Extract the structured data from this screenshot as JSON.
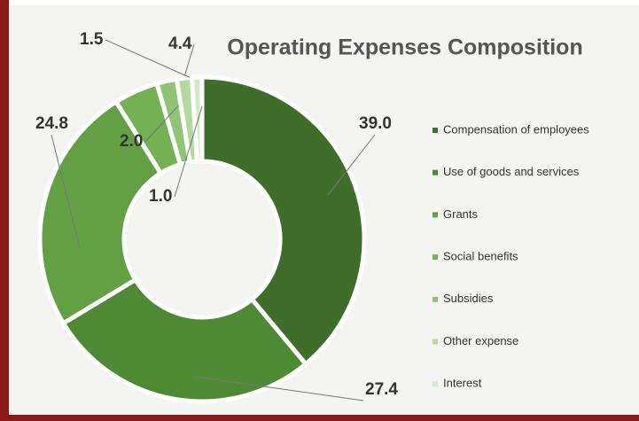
{
  "chart_data": {
    "type": "donut",
    "title": "Operating Expenses Composition",
    "categories": [
      "Compensation of employees",
      "Use of goods and services",
      "Grants",
      "Social benefits",
      "Subsidies",
      "Other expense",
      "Interest"
    ],
    "values": [
      39.0,
      27.4,
      24.8,
      4.4,
      2.0,
      1.5,
      1.0
    ],
    "value_labels": [
      "39.0",
      "27.4",
      "24.8",
      "4.4",
      "2.0",
      "1.5",
      "1.0"
    ],
    "colors": [
      "#3f6e2b",
      "#4e8a33",
      "#63a044",
      "#74b152",
      "#8fc572",
      "#b3d99d",
      "#d3eac4"
    ],
    "legend": "right"
  }
}
